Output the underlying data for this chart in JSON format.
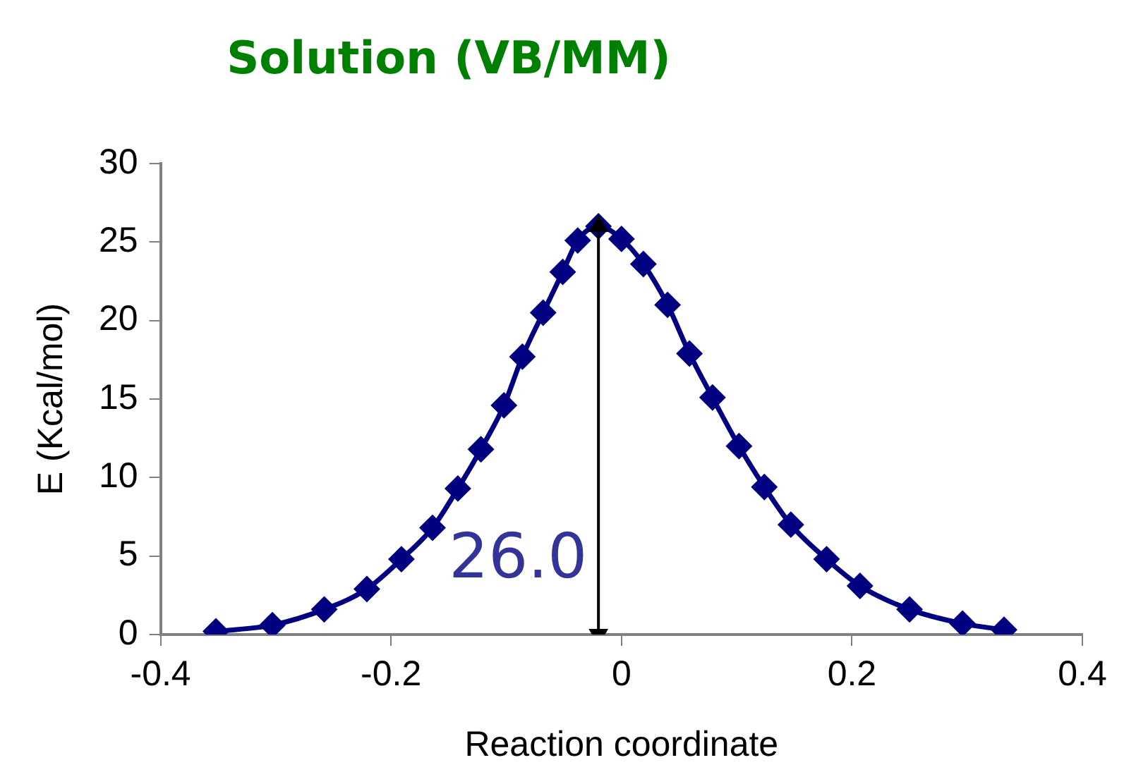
{
  "chart_data": {
    "type": "line",
    "title": "Solution (VB/MM)",
    "xlabel": "Reaction coordinate",
    "ylabel": "E (Kcal/mol)",
    "x": [
      -0.352,
      -0.303,
      -0.258,
      -0.221,
      -0.191,
      -0.164,
      -0.142,
      -0.122,
      -0.102,
      -0.086,
      -0.068,
      -0.051,
      -0.038,
      -0.02,
      0.0,
      0.019,
      0.04,
      0.059,
      0.079,
      0.102,
      0.124,
      0.147,
      0.178,
      0.207,
      0.25,
      0.296,
      0.332
    ],
    "series": [
      {
        "x": [
          -0.02,
          -0.02
        ],
        "values": [
          0,
          26.0
        ],
        "color": "#000000",
        "marker": "triangle"
      },
      {
        "color": "#000080",
        "values": [
          0.2,
          0.6,
          1.6,
          2.9,
          4.8,
          6.8,
          9.3,
          11.8,
          14.6,
          17.7,
          20.5,
          23.1,
          25.1,
          26.0,
          25.2,
          23.6,
          21.0,
          17.9,
          15.1,
          12.0,
          9.4,
          7.0,
          4.8,
          3.1,
          1.6,
          0.7,
          0.3
        ]
      }
    ],
    "xlim": [
      -0.4,
      0.4
    ],
    "xticks": [
      -0.4,
      -0.2,
      0,
      0.2,
      0.4
    ],
    "ylim": [
      0,
      30
    ],
    "yticks": [
      0,
      5,
      10,
      15,
      20,
      25,
      30
    ],
    "grid": false,
    "legend": false,
    "marker": "diamond",
    "line_style": "solid",
    "annotations": [
      "26.0"
    ]
  }
}
